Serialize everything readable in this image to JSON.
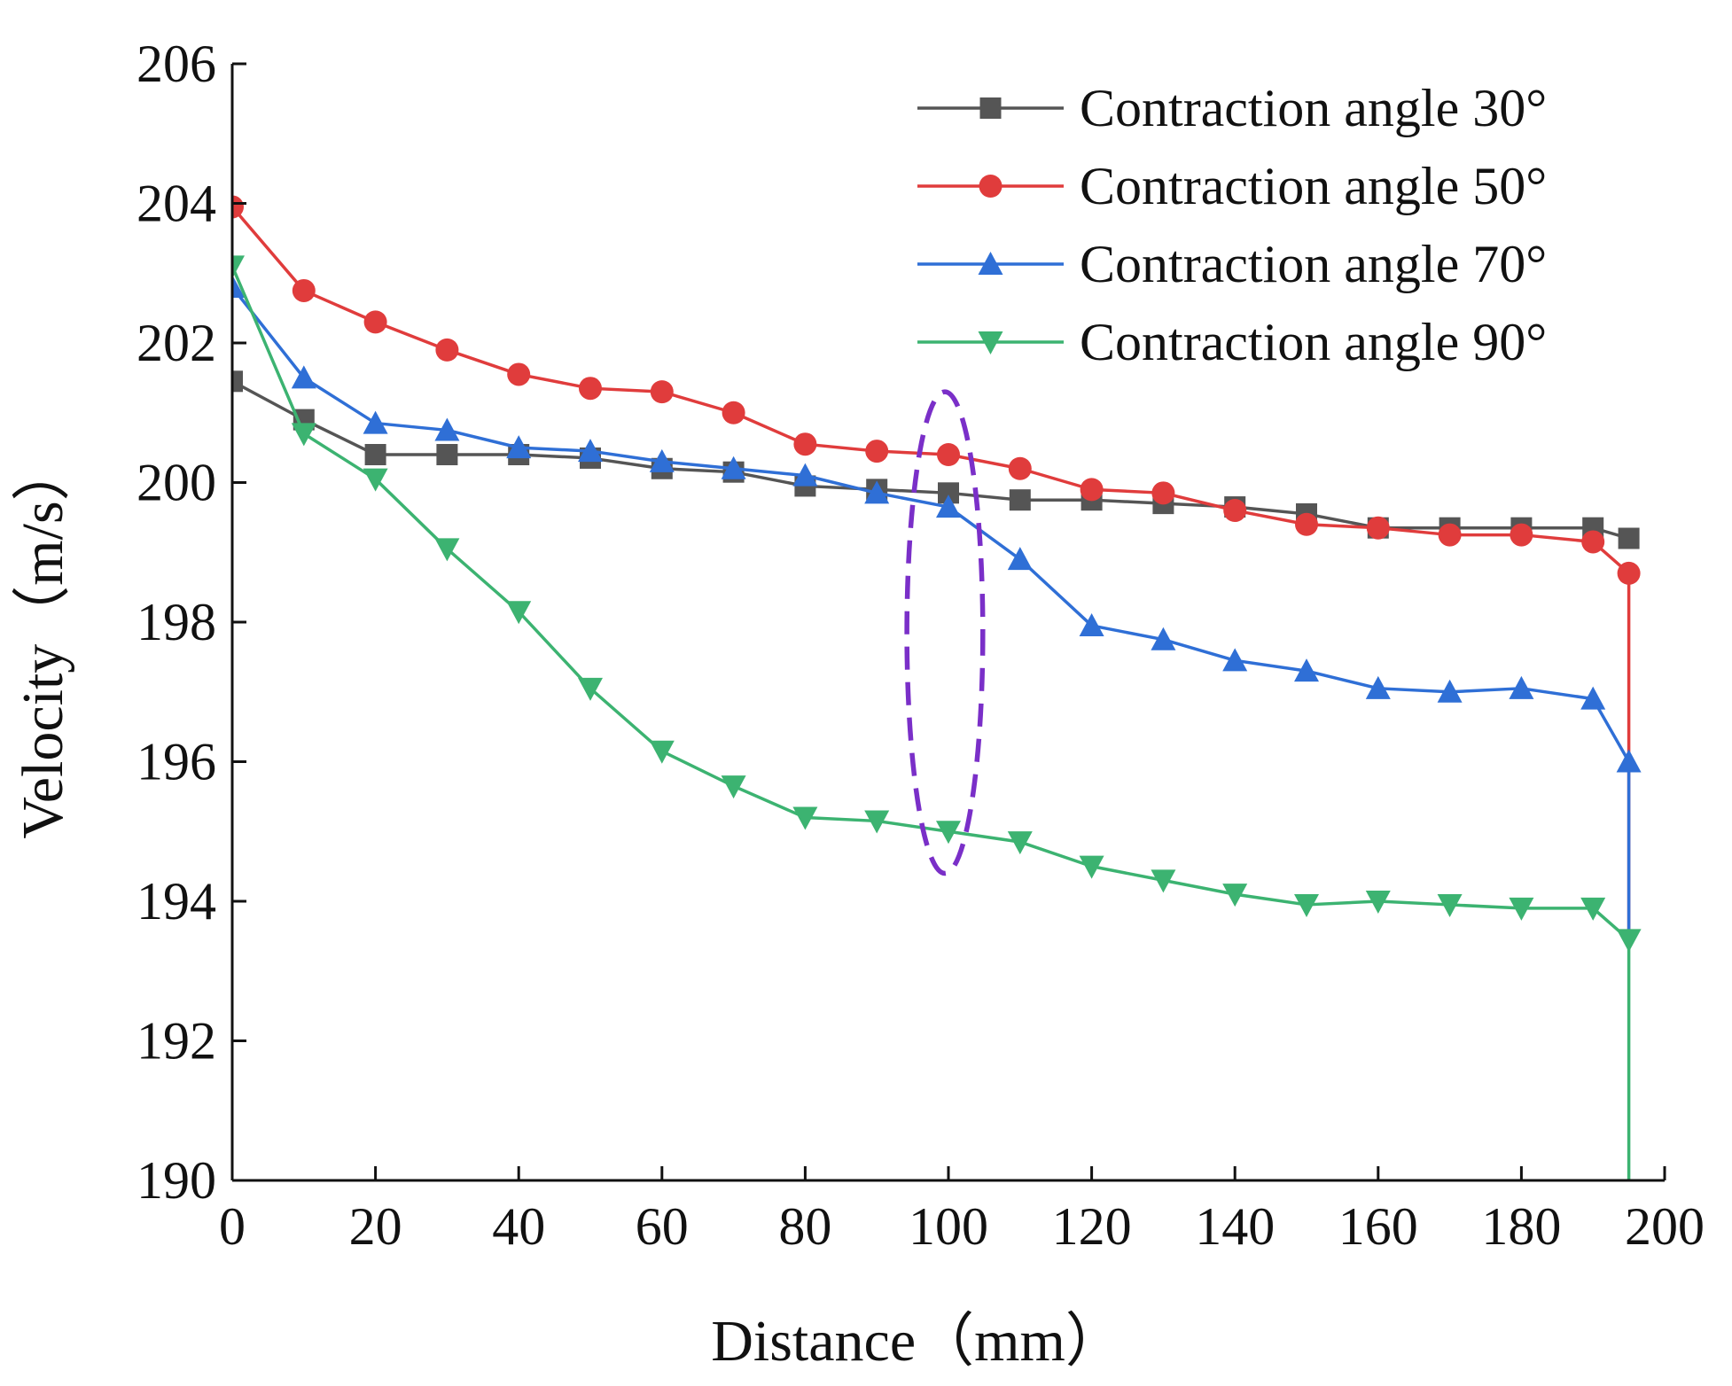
{
  "chart_data": {
    "type": "line",
    "xlabel": "Distance（mm）",
    "ylabel": "Velocity（m/s）",
    "xlim": [
      0,
      200
    ],
    "ylim": [
      190,
      206
    ],
    "xticks": [
      0,
      20,
      40,
      60,
      80,
      100,
      120,
      140,
      160,
      180,
      200
    ],
    "yticks": [
      190,
      192,
      194,
      196,
      198,
      200,
      202,
      204,
      206
    ],
    "grid": false,
    "legend_position": "top-right",
    "series": [
      {
        "name": "Contraction angle 30°",
        "color": "#555555",
        "marker": "square",
        "x": [
          0,
          10,
          20,
          30,
          40,
          50,
          60,
          70,
          80,
          90,
          100,
          110,
          120,
          130,
          140,
          150,
          160,
          170,
          180,
          190,
          195
        ],
        "y": [
          201.45,
          200.9,
          200.4,
          200.4,
          200.4,
          200.35,
          200.2,
          200.15,
          199.95,
          199.9,
          199.85,
          199.75,
          199.75,
          199.7,
          199.65,
          199.55,
          199.35,
          199.35,
          199.35,
          199.35,
          199.2
        ]
      },
      {
        "name": "Contraction angle 50°",
        "color": "#e03c3c",
        "marker": "circle",
        "x": [
          0,
          10,
          20,
          30,
          40,
          50,
          60,
          70,
          80,
          90,
          100,
          110,
          120,
          130,
          140,
          150,
          160,
          170,
          180,
          190,
          195,
          195
        ],
        "y": [
          203.95,
          202.75,
          202.3,
          201.9,
          201.55,
          201.35,
          201.3,
          201.0,
          200.55,
          200.45,
          200.4,
          200.2,
          199.9,
          199.85,
          199.6,
          199.4,
          199.35,
          199.25,
          199.25,
          199.15,
          198.7,
          193.5
        ]
      },
      {
        "name": "Contraction angle 70°",
        "color": "#2f6fd6",
        "marker": "triangle-up",
        "x": [
          0,
          10,
          20,
          30,
          40,
          50,
          60,
          70,
          80,
          90,
          100,
          110,
          120,
          130,
          140,
          150,
          160,
          170,
          180,
          190,
          195,
          195
        ],
        "y": [
          202.8,
          201.5,
          200.85,
          200.75,
          200.5,
          200.45,
          200.3,
          200.2,
          200.1,
          199.85,
          199.65,
          198.9,
          197.95,
          197.75,
          197.45,
          197.3,
          197.05,
          197.0,
          197.05,
          196.9,
          196.0,
          193.5
        ]
      },
      {
        "name": "Contraction angle 90°",
        "color": "#3cb371",
        "marker": "triangle-down",
        "x": [
          0,
          10,
          20,
          30,
          40,
          50,
          60,
          70,
          80,
          90,
          100,
          110,
          120,
          130,
          140,
          150,
          160,
          170,
          180,
          190,
          195,
          195
        ],
        "y": [
          203.1,
          200.7,
          200.05,
          199.05,
          198.15,
          197.05,
          196.15,
          195.65,
          195.2,
          195.15,
          195.0,
          194.85,
          194.5,
          194.3,
          194.1,
          193.95,
          194.0,
          193.95,
          193.9,
          193.9,
          193.45,
          190.0
        ]
      }
    ],
    "annotations": [
      {
        "type": "dashed-ellipse",
        "color": "#7a2fc8",
        "center_x": 99.5,
        "center_y": 197.85,
        "radius_x": 5.3,
        "radius_y": 3.45
      }
    ]
  }
}
